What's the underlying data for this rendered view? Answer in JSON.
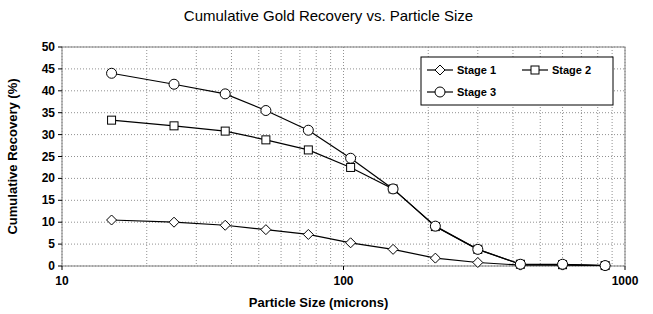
{
  "chart_data": {
    "type": "line",
    "title": "Cumulative Gold Recovery vs. Particle Size",
    "x_label": "Particle Size (microns)",
    "y_label": "Cumulative Recovery (%)",
    "x": [
      15,
      25,
      38,
      53,
      75,
      106,
      150,
      212,
      300,
      425,
      600,
      850
    ],
    "series": [
      {
        "name": "Stage 1",
        "color": "#000000",
        "marker": "diamond",
        "line_style": "solid",
        "values": [
          10.5,
          10,
          9.3,
          8.3,
          7.2,
          5.3,
          3.8,
          1.8,
          0.8,
          0.2,
          0.2,
          0.1
        ]
      },
      {
        "name": "Stage 2",
        "color": "#000000",
        "marker": "square",
        "line_style": "solid",
        "values": [
          33.3,
          32,
          30.8,
          28.8,
          26.5,
          22.5,
          17.6,
          9,
          3.8,
          0.4,
          0.3,
          0.1
        ]
      },
      {
        "name": "Stage 3",
        "color": "#000000",
        "marker": "circle",
        "line_style": "solid",
        "values": [
          44,
          41.5,
          39.3,
          35.5,
          31,
          24.6,
          17.6,
          9.1,
          3.8,
          0.4,
          0.4,
          0.1
        ]
      }
    ],
    "xlim": [
      10,
      1000
    ],
    "xticks": [
      10,
      100,
      1000
    ],
    "ylim": [
      0,
      50
    ],
    "yticks": [
      0,
      5,
      10,
      15,
      20,
      25,
      30,
      35,
      40,
      45,
      50
    ],
    "log": "x",
    "grid": true,
    "legend": "upper right"
  }
}
